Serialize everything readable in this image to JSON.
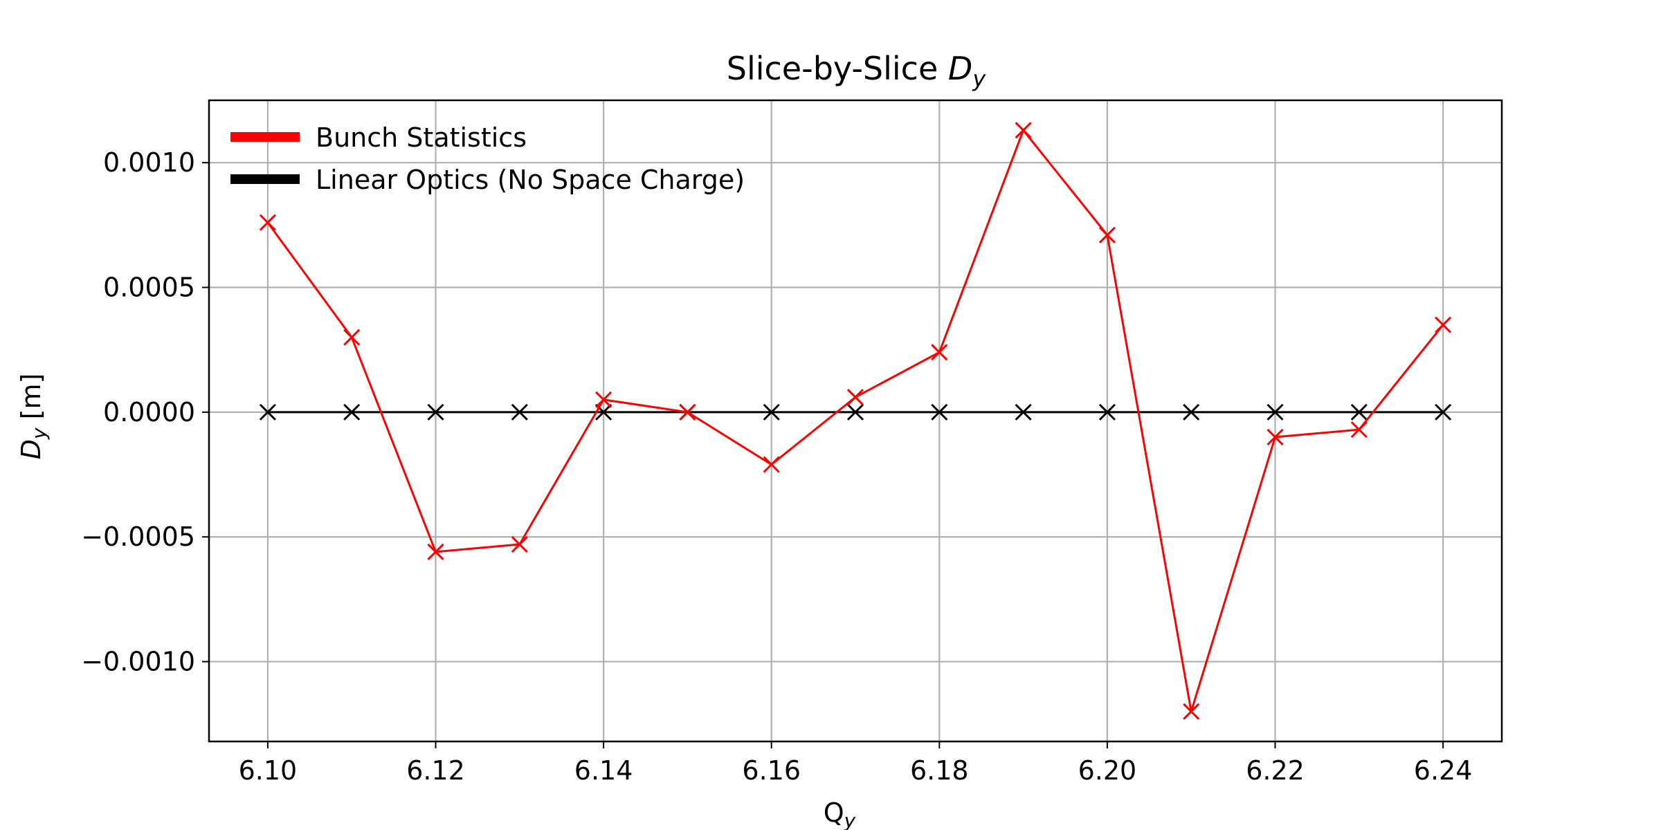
{
  "chart_data": {
    "type": "line",
    "title": "Slice-by-Slice D_y",
    "title_main": "Slice-by-Slice ",
    "title_symbol": "D",
    "title_sub": "y",
    "xlabel_main": "Q",
    "xlabel_sub": "y",
    "ylabel_main": "D",
    "ylabel_sub": "y",
    "ylabel_unit": " [m]",
    "xlim": [
      6.093,
      6.247
    ],
    "ylim": [
      -0.00132,
      0.00125
    ],
    "xticks": [
      6.1,
      6.12,
      6.14,
      6.16,
      6.18,
      6.2,
      6.22,
      6.24
    ],
    "xtick_labels": [
      "6.10",
      "6.12",
      "6.14",
      "6.16",
      "6.18",
      "6.20",
      "6.22",
      "6.24"
    ],
    "yticks": [
      -0.001,
      -0.0005,
      0.0,
      0.0005,
      0.001
    ],
    "ytick_labels": [
      "−0.0010",
      "−0.0005",
      "0.0000",
      "0.0005",
      "0.0010"
    ],
    "grid": true,
    "legend_position": "top-left",
    "x": [
      6.1,
      6.11,
      6.12,
      6.13,
      6.14,
      6.15,
      6.16,
      6.17,
      6.18,
      6.19,
      6.2,
      6.21,
      6.22,
      6.23,
      6.24
    ],
    "series": [
      {
        "name": "Bunch Statistics",
        "color": "#ff0000",
        "marker": "x",
        "values": [
          0.00076,
          0.0003,
          -0.00056,
          -0.00053,
          5e-05,
          0.0,
          -0.00021,
          6e-05,
          0.00024,
          0.00113,
          0.00071,
          -0.0012,
          -0.0001,
          -7e-05,
          0.00035
        ]
      },
      {
        "name": "Linear Optics (No Space Charge)",
        "color": "#000000",
        "marker": "x",
        "values": [
          0,
          0,
          0,
          0,
          0,
          0,
          0,
          0,
          0,
          0,
          0,
          0,
          0,
          0,
          0
        ]
      }
    ]
  }
}
